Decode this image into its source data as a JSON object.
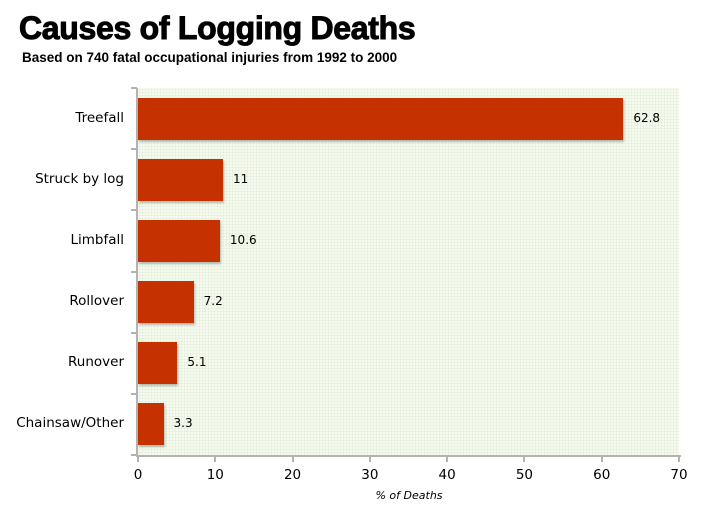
{
  "chart_data": {
    "type": "bar",
    "orientation": "horizontal",
    "title": "Causes of Logging Deaths",
    "subtitle": "Based on 740 fatal occupational injuries from 1992 to 2000",
    "categories": [
      "Treefall",
      "Struck by log",
      "Limbfall",
      "Rollover",
      "Runover",
      "Chainsaw/Other"
    ],
    "values": [
      62.8,
      11,
      10.6,
      7.2,
      5.1,
      3.3
    ],
    "value_labels": [
      "62.8",
      "11",
      "10.6",
      "7.2",
      "5.1",
      "3.3"
    ],
    "xlabel": "% of Deaths",
    "ylabel": "",
    "xlim": [
      0,
      70
    ],
    "x_ticks": [
      "0",
      "10",
      "20",
      "30",
      "40",
      "50",
      "60",
      "70"
    ],
    "grid": false,
    "legend": null,
    "colors": {
      "bar": "#cc3300",
      "plot_background": "#f7faec",
      "axis": "#b3b3b3"
    }
  }
}
